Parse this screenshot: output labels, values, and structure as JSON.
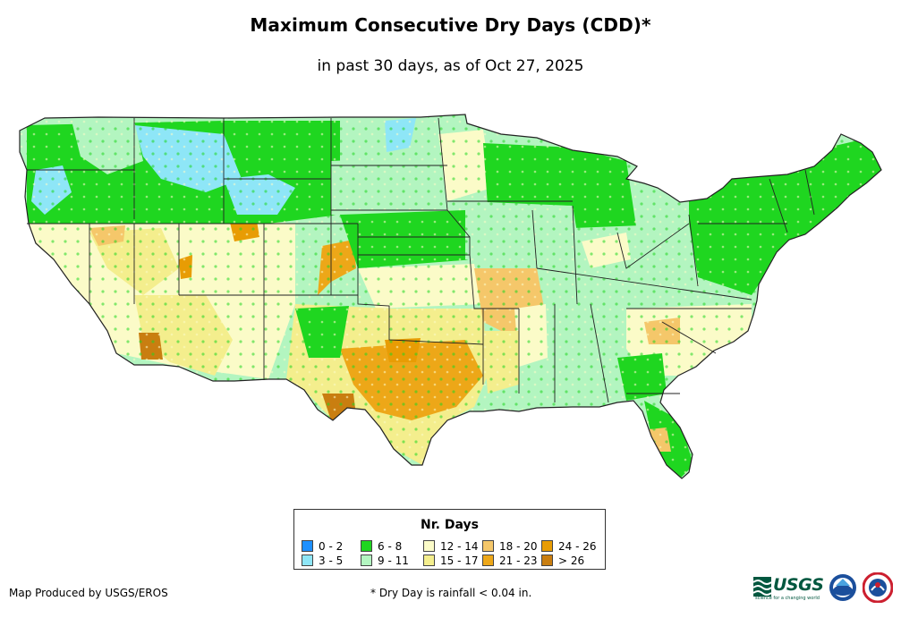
{
  "title": "Maximum Consecutive Dry Days (CDD)*",
  "subtitle": "in past 30 days, as of Oct 27, 2025",
  "legend": {
    "title": "Nr. Days",
    "items": [
      {
        "label": "0 - 2",
        "color": "#1e90ff"
      },
      {
        "label": "3 - 5",
        "color": "#8ee6f7"
      },
      {
        "label": "6 - 8",
        "color": "#1fd620"
      },
      {
        "label": "9 - 11",
        "color": "#b3f5c0"
      },
      {
        "label": "12 - 14",
        "color": "#fbfbc8"
      },
      {
        "label": "15 - 17",
        "color": "#f4ee8d"
      },
      {
        "label": "18 - 20",
        "color": "#f5c76a"
      },
      {
        "label": "21 - 23",
        "color": "#eda718"
      },
      {
        "label": "24 - 26",
        "color": "#e89c04"
      },
      {
        "label": "> 26",
        "color": "#c97e10"
      }
    ]
  },
  "credit": "Map Produced by USGS/EROS",
  "footnote": "* Dry Day is rainfall < 0.04 in.",
  "logos": {
    "usgs_text": "USGS",
    "usgs_tagline": "science for a changing world",
    "noaa_icon": "noaa-logo-icon",
    "nws_icon": "national-weather-service-logo-icon"
  },
  "colors": {
    "state_border": "#222222",
    "land_default": "#b3f5c0"
  }
}
